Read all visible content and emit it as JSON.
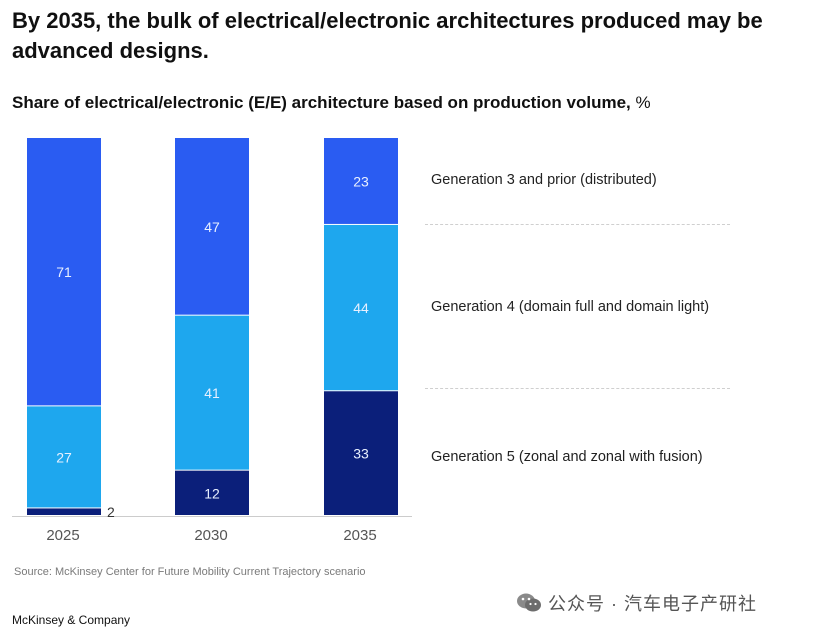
{
  "header": {
    "title": "By 2035, the bulk of electrical/electronic architectures produced may be advanced designs.",
    "subtitle": "Share of electrical/electronic (E/E) architecture based on production volume,",
    "unit": "%"
  },
  "chart_data": {
    "type": "bar",
    "stacked": true,
    "categories": [
      "2025",
      "2030",
      "2035"
    ],
    "series": [
      {
        "name": "Generation 5 (zonal and zonal with fusion)",
        "values": [
          2,
          12,
          33
        ],
        "color": "#0b1f7a"
      },
      {
        "name": "Generation 4 (domain full and domain light)",
        "values": [
          27,
          41,
          44
        ],
        "color": "#1ea7ee"
      },
      {
        "name": "Generation 3 and prior (distributed)",
        "values": [
          71,
          47,
          23
        ],
        "color": "#2a5cf2"
      }
    ],
    "ylim": [
      0,
      100
    ],
    "title": "Share of electrical/electronic (E/E) architecture based on production volume, %",
    "legend_placement": "right"
  },
  "legend": {
    "gen3": "Generation 3 and prior (distributed)",
    "gen4": "Generation 4 (domain full and domain light)",
    "gen5": "Generation 5 (zonal and zonal with fusion)"
  },
  "footer": {
    "source": "Source: McKinsey Center for Future Mobility Current Trajectory scenario",
    "brand": "McKinsey & Company",
    "watermark": "公众号 · 汽车电子产研社"
  }
}
